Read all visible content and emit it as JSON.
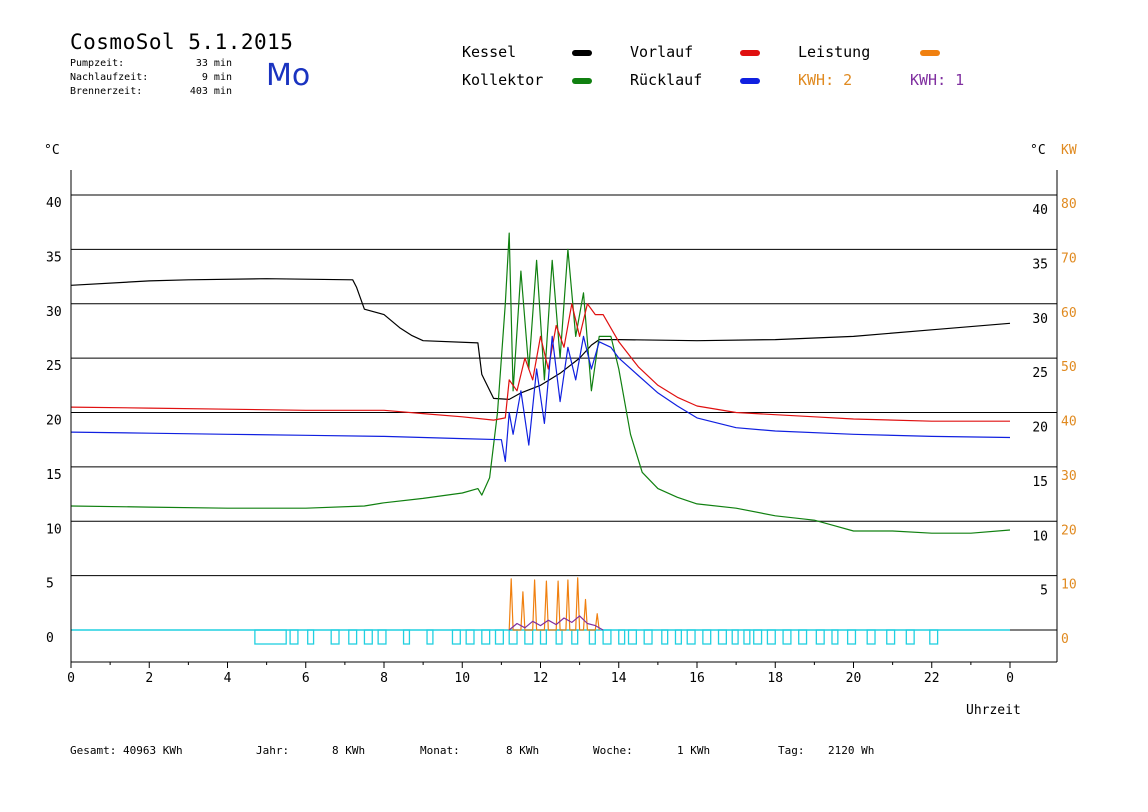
{
  "header": {
    "title": "CosmoSol 5.1.2015",
    "day": "Mo",
    "stats": [
      {
        "label": "Pumpzeit:",
        "value": "33 min"
      },
      {
        "label": "Nachlaufzeit:",
        "value": "9 min"
      },
      {
        "label": "Brennerzeit:",
        "value": "403 min"
      }
    ]
  },
  "legend": [
    {
      "label": "Kessel",
      "color": "#000000"
    },
    {
      "label": "Vorlauf",
      "color": "#e01010"
    },
    {
      "label": "Leistung",
      "color": "#f08010"
    },
    {
      "label": "Kollektor",
      "color": "#108010"
    },
    {
      "label": "Rücklauf",
      "color": "#1020e0"
    }
  ],
  "kwh": [
    {
      "label": "KWH: 2",
      "color": "#e08a20"
    },
    {
      "label": "KWH: 1",
      "color": "#8030a0"
    }
  ],
  "footer": [
    {
      "label": "Gesamt:",
      "value": "40963 KWh"
    },
    {
      "label": "Jahr:",
      "value": "8 KWh"
    },
    {
      "label": "Monat:",
      "value": "8 KWh"
    },
    {
      "label": "Woche:",
      "value": "1 KWh"
    },
    {
      "label": "Tag:",
      "value": "2120 Wh"
    }
  ],
  "chart_data": {
    "type": "line",
    "xlabel": "Uhrzeit",
    "ylabel_left": "°C",
    "ylabel_right": "°C",
    "ylabel_right2": "KW",
    "xlim": [
      0,
      24
    ],
    "ylim": [
      0,
      40
    ],
    "x_ticks": [
      "0",
      "2",
      "4",
      "6",
      "8",
      "10",
      "12",
      "14",
      "16",
      "18",
      "20",
      "22",
      "0"
    ],
    "y_ticks_left": [
      "0",
      "5",
      "10",
      "15",
      "20",
      "25",
      "30",
      "35",
      "40"
    ],
    "y_ticks_right": [
      "5",
      "10",
      "15",
      "20",
      "25",
      "30",
      "35",
      "40"
    ],
    "y_ticks_kw": [
      "0",
      "10",
      "20",
      "30",
      "40",
      "50",
      "60",
      "70",
      "80"
    ],
    "grid": true,
    "series": [
      {
        "name": "Kessel",
        "color": "#000000",
        "x": [
          0,
          2,
          3,
          5,
          7.2,
          7.3,
          7.5,
          8,
          8.4,
          8.7,
          9,
          10.4,
          10.5,
          10.8,
          11.2,
          11.5,
          12,
          12.5,
          13,
          13.3,
          13.5,
          14,
          16,
          18,
          20,
          22,
          24
        ],
        "y": [
          31.7,
          32.1,
          32.2,
          32.3,
          32.2,
          31.5,
          29.5,
          29,
          27.8,
          27.1,
          26.6,
          26.4,
          23.5,
          21.3,
          21.2,
          21.8,
          22.5,
          23.6,
          25,
          26.2,
          26.7,
          26.7,
          26.6,
          26.7,
          27,
          27.6,
          28.2
        ]
      },
      {
        "name": "Kollektor",
        "color": "#108010",
        "x": [
          0,
          2,
          4,
          6,
          7.5,
          8,
          9,
          10,
          10.4,
          10.5,
          10.7,
          10.9,
          11.1,
          11.2,
          11.3,
          11.5,
          11.7,
          11.9,
          12.1,
          12.3,
          12.5,
          12.7,
          12.9,
          13.1,
          13.3,
          13.5,
          13.8,
          14,
          14.3,
          14.6,
          15,
          15.5,
          16,
          17,
          18,
          19,
          19.5,
          20,
          21,
          22,
          23,
          24
        ],
        "y": [
          11.4,
          11.3,
          11.2,
          11.2,
          11.4,
          11.7,
          12.1,
          12.6,
          13,
          12.4,
          14,
          20,
          30,
          36.5,
          22,
          33,
          24,
          34,
          23,
          34,
          25,
          35,
          27,
          31,
          22,
          27,
          27,
          24,
          18,
          14.5,
          13,
          12.2,
          11.6,
          11.2,
          10.5,
          10.1,
          9.6,
          9.1,
          9.1,
          8.9,
          8.9,
          9.2
        ]
      },
      {
        "name": "Vorlauf",
        "color": "#e01010",
        "x": [
          0,
          2,
          4,
          6,
          8,
          9,
          10,
          10.8,
          11.1,
          11.2,
          11.4,
          11.6,
          11.8,
          12,
          12.2,
          12.4,
          12.6,
          12.8,
          13,
          13.2,
          13.4,
          13.6,
          14,
          14.5,
          15,
          15.5,
          16,
          17,
          18,
          19,
          20,
          22,
          24
        ],
        "y": [
          20.5,
          20.4,
          20.3,
          20.2,
          20.2,
          19.9,
          19.6,
          19.3,
          19.5,
          23,
          22,
          25,
          23,
          27,
          24,
          28,
          26,
          30,
          27,
          30,
          29,
          29,
          26.5,
          24.2,
          22.5,
          21.4,
          20.6,
          20,
          19.8,
          19.6,
          19.4,
          19.2,
          19.2
        ]
      },
      {
        "name": "Rücklauf",
        "color": "#1020e0",
        "x": [
          0,
          2,
          4,
          6,
          8,
          10,
          11,
          11.1,
          11.2,
          11.3,
          11.5,
          11.7,
          11.9,
          12.1,
          12.3,
          12.5,
          12.7,
          12.9,
          13.1,
          13.3,
          13.5,
          13.8,
          14,
          14.5,
          15,
          15.5,
          16,
          17,
          18,
          20,
          22,
          24
        ],
        "y": [
          18.2,
          18.1,
          18,
          17.9,
          17.8,
          17.6,
          17.5,
          15.5,
          20,
          18,
          22,
          17,
          24,
          19,
          27,
          21,
          26,
          23,
          27,
          24,
          26.5,
          26,
          25,
          23.4,
          21.8,
          20.6,
          19.5,
          18.6,
          18.3,
          18,
          17.8,
          17.7
        ]
      },
      {
        "name": "Leistung",
        "color": "#f08010",
        "x": [
          11.2,
          11.25,
          11.3,
          11.5,
          11.55,
          11.6,
          11.8,
          11.85,
          11.9,
          12.1,
          12.15,
          12.2,
          12.4,
          12.45,
          12.5,
          12.65,
          12.7,
          12.75,
          12.9,
          12.95,
          13,
          13.1,
          13.15,
          13.2,
          13.4,
          13.45,
          13.5
        ],
        "y": [
          0,
          4.7,
          0,
          0,
          3.5,
          0,
          0,
          4.6,
          0,
          0,
          4.5,
          0,
          0,
          4.5,
          0,
          0,
          4.6,
          0,
          0,
          4.8,
          0,
          0,
          2.8,
          0,
          0,
          1.5,
          0
        ]
      },
      {
        "name": "KWH: 1",
        "color": "#8030a0",
        "x": [
          11.2,
          11.4,
          11.6,
          11.8,
          12,
          12.2,
          12.4,
          12.6,
          12.8,
          13,
          13.2,
          13.4,
          13.6
        ],
        "y": [
          0,
          0.6,
          0.2,
          0.8,
          0.4,
          0.9,
          0.5,
          1.1,
          0.7,
          1.3,
          0.6,
          0.4,
          0
        ]
      }
    ],
    "state_bars": [
      {
        "from": 4.7,
        "to": 5.5
      },
      {
        "from": 5.6,
        "to": 5.8
      },
      {
        "from": 6.05,
        "to": 6.2
      },
      {
        "from": 6.65,
        "to": 6.85
      },
      {
        "from": 7.1,
        "to": 7.3
      },
      {
        "from": 7.5,
        "to": 7.7
      },
      {
        "from": 7.85,
        "to": 8.05
      },
      {
        "from": 8.5,
        "to": 8.65
      },
      {
        "from": 9.1,
        "to": 9.25
      },
      {
        "from": 9.75,
        "to": 9.95
      },
      {
        "from": 10.1,
        "to": 10.3
      },
      {
        "from": 10.5,
        "to": 10.7
      },
      {
        "from": 10.85,
        "to": 11.05
      },
      {
        "from": 11.2,
        "to": 11.4
      },
      {
        "from": 11.6,
        "to": 11.8
      },
      {
        "from": 12,
        "to": 12.15
      },
      {
        "from": 12.4,
        "to": 12.55
      },
      {
        "from": 12.8,
        "to": 12.95
      },
      {
        "from": 13.25,
        "to": 13.4
      },
      {
        "from": 13.6,
        "to": 13.8
      },
      {
        "from": 14,
        "to": 14.15
      },
      {
        "from": 14.25,
        "to": 14.45
      },
      {
        "from": 14.65,
        "to": 14.85
      },
      {
        "from": 15.1,
        "to": 15.25
      },
      {
        "from": 15.45,
        "to": 15.6
      },
      {
        "from": 15.75,
        "to": 15.95
      },
      {
        "from": 16.15,
        "to": 16.35
      },
      {
        "from": 16.55,
        "to": 16.75
      },
      {
        "from": 16.9,
        "to": 17.05
      },
      {
        "from": 17.2,
        "to": 17.35
      },
      {
        "from": 17.45,
        "to": 17.65
      },
      {
        "from": 17.8,
        "to": 18
      },
      {
        "from": 18.2,
        "to": 18.4
      },
      {
        "from": 18.6,
        "to": 18.8
      },
      {
        "from": 19.05,
        "to": 19.25
      },
      {
        "from": 19.45,
        "to": 19.6
      },
      {
        "from": 19.85,
        "to": 20.05
      },
      {
        "from": 20.35,
        "to": 20.55
      },
      {
        "from": 20.85,
        "to": 21.05
      },
      {
        "from": 21.35,
        "to": 21.55
      },
      {
        "from": 21.95,
        "to": 22.15
      }
    ]
  }
}
